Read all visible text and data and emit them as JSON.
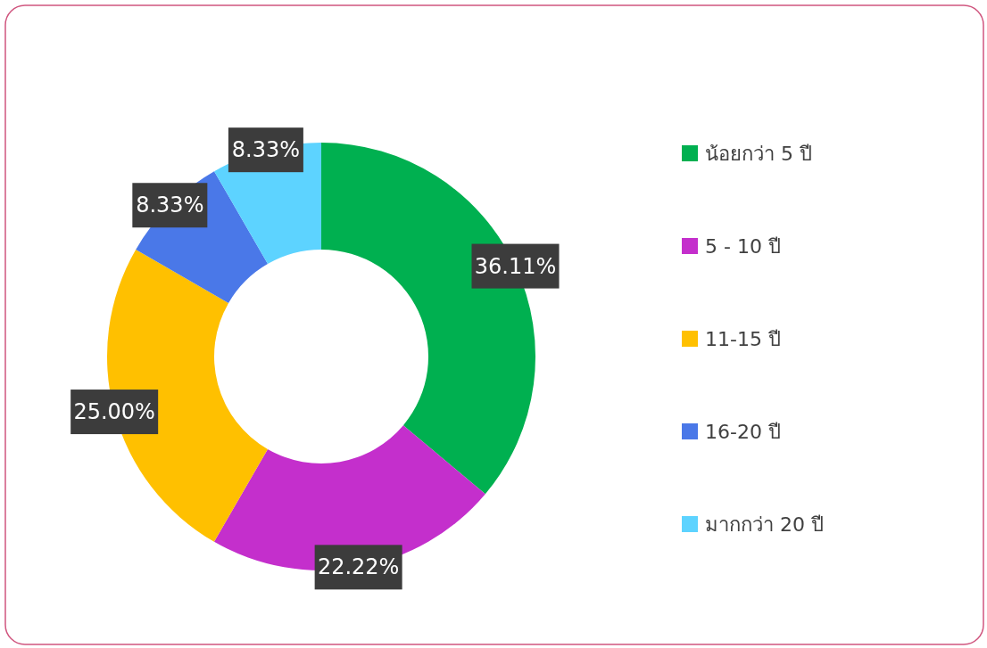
{
  "chart_data": {
    "type": "donut",
    "categories": [
      "น้อยกว่า 5 ปี",
      "5 - 10 ปี",
      "11-15 ปี",
      "16-20 ปี",
      "มากกว่า 20 ปี"
    ],
    "values": [
      36.11,
      22.22,
      25.0,
      8.33,
      8.33
    ],
    "value_labels": [
      "36.11%",
      "22.22%",
      "25.00%",
      "8.33%",
      "8.33%"
    ],
    "colors": [
      "#00b050",
      "#c42fcc",
      "#ffc000",
      "#4a78e8",
      "#5dd3ff"
    ],
    "legend": "right"
  }
}
